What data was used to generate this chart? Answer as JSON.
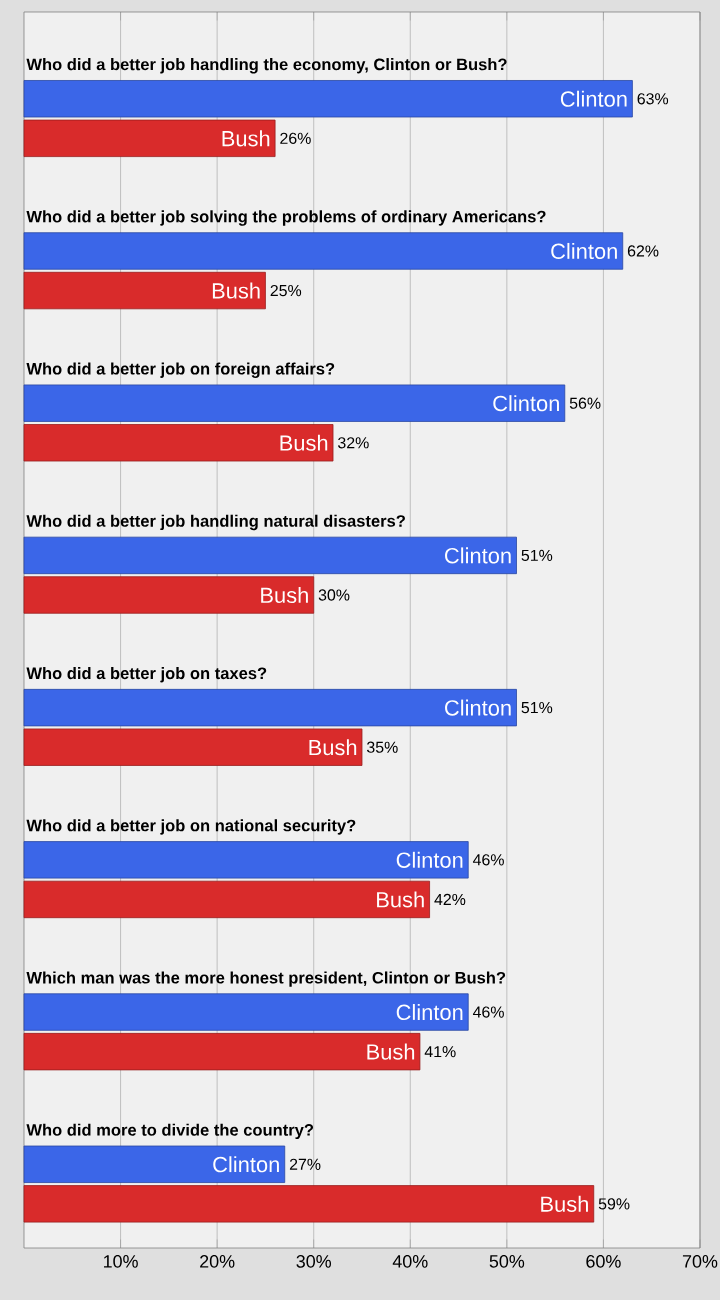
{
  "chart_data": {
    "type": "bar",
    "orientation": "horizontal",
    "categories": [
      "Who did a better job handling the economy, Clinton or Bush?",
      "Who did a better job solving the problems of ordinary Americans?",
      "Who did a better job on foreign affairs?",
      "Who did a better job handling natural disasters?",
      "Who did a better job on taxes?",
      "Who did a better job on national security?",
      "Which man was the more honest president, Clinton or Bush?",
      "Who did more to divide the country?"
    ],
    "series": [
      {
        "name": "Clinton",
        "color": "#3b66e8",
        "values": [
          63,
          62,
          56,
          51,
          51,
          46,
          46,
          27
        ],
        "value_labels": [
          "63%",
          "62%",
          "56%",
          "51%",
          "51%",
          "46%",
          "46%",
          "27%"
        ]
      },
      {
        "name": "Bush",
        "color": "#d92b2b",
        "values": [
          26,
          25,
          32,
          30,
          35,
          42,
          41,
          59
        ],
        "value_labels": [
          "26%",
          "25%",
          "32%",
          "30%",
          "35%",
          "42%",
          "41%",
          "59%"
        ]
      }
    ],
    "xlim": [
      0,
      70
    ],
    "xticks": [
      {
        "value": 10,
        "label": "10%"
      },
      {
        "value": 20,
        "label": "20%"
      },
      {
        "value": 30,
        "label": "30%"
      },
      {
        "value": 40,
        "label": "40%"
      },
      {
        "value": 50,
        "label": "50%"
      },
      {
        "value": 60,
        "label": "60%"
      },
      {
        "value": 70,
        "label": "70%"
      }
    ],
    "grid": "x",
    "legend": false
  }
}
